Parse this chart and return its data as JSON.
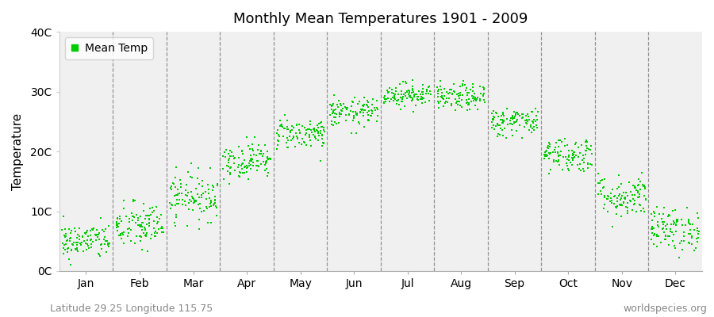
{
  "title": "Monthly Mean Temperatures 1901 - 2009",
  "ylabel": "Temperature",
  "attribution_left": "Latitude 29.25 Longitude 115.75",
  "attribution_right": "worldspecies.org",
  "dot_color": "#00cc00",
  "background_color": "#f0f0f0",
  "outer_background": "#ffffff",
  "ylim": [
    0,
    40
  ],
  "yticks": [
    0,
    10,
    20,
    30,
    40
  ],
  "ytick_labels": [
    "0C",
    "10C",
    "20C",
    "30C",
    "40C"
  ],
  "months": [
    "Jan",
    "Feb",
    "Mar",
    "Apr",
    "May",
    "Jun",
    "Jul",
    "Aug",
    "Sep",
    "Oct",
    "Nov",
    "Dec"
  ],
  "mean_temps": [
    5.0,
    7.5,
    12.5,
    18.5,
    23.0,
    26.5,
    29.5,
    29.0,
    25.0,
    19.5,
    12.5,
    7.0
  ],
  "std_temps": [
    1.5,
    2.0,
    2.0,
    1.5,
    1.3,
    1.2,
    1.0,
    1.1,
    1.2,
    1.5,
    1.8,
    1.8
  ],
  "n_years": 109,
  "legend_label": "Mean Temp",
  "marker_size": 3
}
